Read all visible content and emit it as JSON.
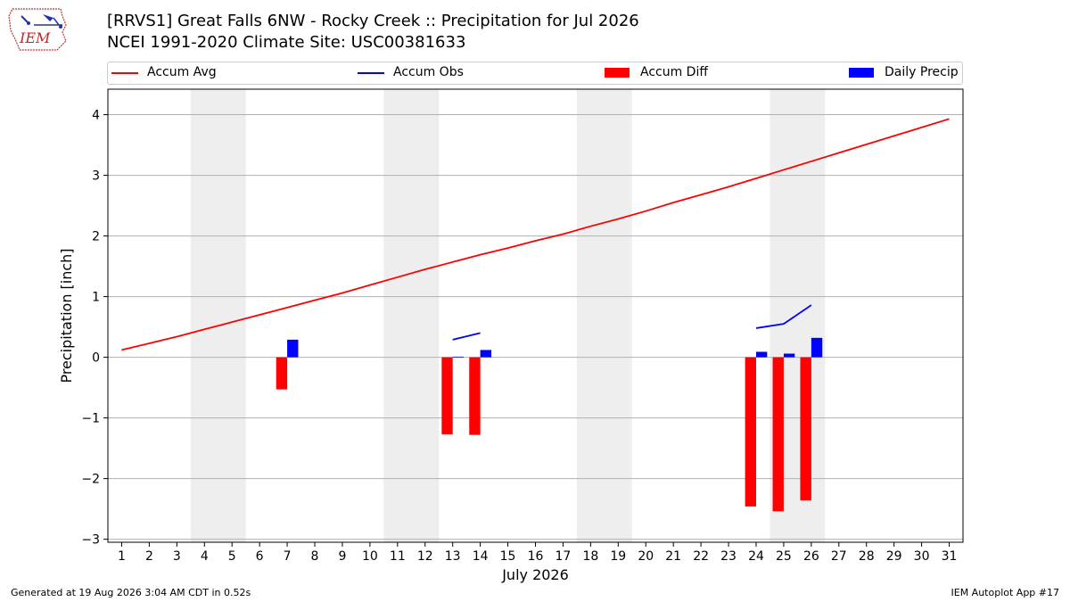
{
  "header": {
    "logo_text": "IEM",
    "title_line1": "[RRVS1] Great Falls 6NW - Rocky Creek :: Precipitation for Jul 2026",
    "title_line2": "NCEI 1991-2020 Climate Site: USC00381633"
  },
  "legend": {
    "items": [
      {
        "label": "Accum Avg",
        "kind": "line",
        "color": "#ff0000"
      },
      {
        "label": "Accum Obs",
        "kind": "line",
        "color": "#0000ff"
      },
      {
        "label": "Accum Diff",
        "kind": "box",
        "color": "#ff0000"
      },
      {
        "label": "Daily Precip",
        "kind": "box",
        "color": "#0000ff"
      }
    ]
  },
  "footer": {
    "left": "Generated at 19 Aug 2026 3:04 AM CDT in 0.52s",
    "right": "IEM Autoplot App #17"
  },
  "chart_data": {
    "type": "bar",
    "xlabel": "July 2026",
    "ylabel": "Precipitation [inch]",
    "x": [
      1,
      2,
      3,
      4,
      5,
      6,
      7,
      8,
      9,
      10,
      11,
      12,
      13,
      14,
      15,
      16,
      17,
      18,
      19,
      20,
      21,
      22,
      23,
      24,
      25,
      26,
      27,
      28,
      29,
      30,
      31
    ],
    "xlim": [
      0.5,
      31.5
    ],
    "ylim": [
      -3.05,
      4.42
    ],
    "yticks": [
      -3,
      -2,
      -1,
      0,
      1,
      2,
      3,
      4
    ],
    "ytick_labels": [
      "−3",
      "−2",
      "−1",
      "0",
      "1",
      "2",
      "3",
      "4"
    ],
    "grid": "horizontal",
    "weekend_shading": [
      [
        3.5,
        5.5
      ],
      [
        10.5,
        12.5
      ],
      [
        17.5,
        19.5
      ],
      [
        24.5,
        26.5
      ]
    ],
    "series": [
      {
        "name": "Accum Avg",
        "type": "line",
        "color": "#ff0000",
        "x": [
          1,
          2,
          3,
          4,
          5,
          6,
          7,
          8,
          9,
          10,
          11,
          12,
          13,
          14,
          15,
          16,
          17,
          18,
          19,
          20,
          21,
          22,
          23,
          24,
          25,
          26,
          27,
          28,
          29,
          30,
          31
        ],
        "values": [
          0.12,
          0.23,
          0.34,
          0.46,
          0.58,
          0.7,
          0.82,
          0.94,
          1.06,
          1.19,
          1.32,
          1.45,
          1.57,
          1.69,
          1.8,
          1.92,
          2.03,
          2.16,
          2.28,
          2.41,
          2.55,
          2.68,
          2.81,
          2.95,
          3.09,
          3.23,
          3.37,
          3.51,
          3.65,
          3.79,
          3.93
        ]
      },
      {
        "name": "Accum Obs",
        "type": "line",
        "color": "#0000ff",
        "segments": [
          {
            "x": [
              13,
              14
            ],
            "values": [
              0.29,
              0.4
            ]
          },
          {
            "x": [
              24,
              25,
              26
            ],
            "values": [
              0.48,
              0.55,
              0.86
            ]
          }
        ]
      },
      {
        "name": "Accum Diff",
        "type": "bar",
        "color": "#ff0000",
        "offset": -0.2,
        "x": [
          7,
          13,
          14,
          24,
          25,
          26
        ],
        "values": [
          -0.53,
          -1.27,
          -1.28,
          -2.46,
          -2.54,
          -2.36
        ]
      },
      {
        "name": "Daily Precip",
        "type": "bar",
        "color": "#0000ff",
        "offset": 0.2,
        "x": [
          7,
          13,
          14,
          24,
          25,
          26
        ],
        "values": [
          0.29,
          0.01,
          0.12,
          0.09,
          0.06,
          0.32
        ]
      }
    ]
  }
}
